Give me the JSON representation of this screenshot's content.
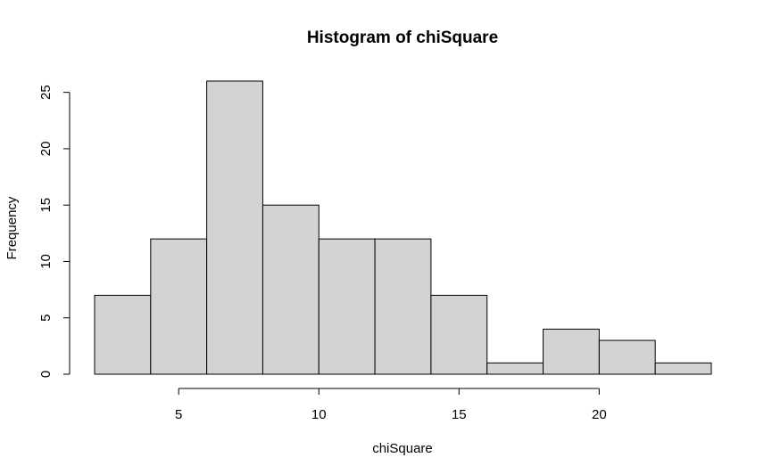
{
  "chart_data": {
    "type": "bar",
    "title": "Histogram of chiSquare",
    "xlabel": "chiSquare",
    "ylabel": "Frequency",
    "bins": [
      {
        "start": 2,
        "end": 4,
        "count": 7
      },
      {
        "start": 4,
        "end": 6,
        "count": 12
      },
      {
        "start": 6,
        "end": 8,
        "count": 26
      },
      {
        "start": 8,
        "end": 10,
        "count": 15
      },
      {
        "start": 10,
        "end": 12,
        "count": 12
      },
      {
        "start": 12,
        "end": 14,
        "count": 12
      },
      {
        "start": 14,
        "end": 16,
        "count": 7
      },
      {
        "start": 16,
        "end": 18,
        "count": 1
      },
      {
        "start": 18,
        "end": 20,
        "count": 4
      },
      {
        "start": 20,
        "end": 22,
        "count": 3
      },
      {
        "start": 22,
        "end": 24,
        "count": 1
      }
    ],
    "xlim": [
      2,
      24
    ],
    "ylim": [
      0,
      26
    ],
    "x_ticks": [
      5,
      10,
      15,
      20
    ],
    "y_ticks": [
      0,
      5,
      10,
      15,
      20,
      25
    ],
    "bar_color": "#d3d3d3",
    "grid": false
  }
}
